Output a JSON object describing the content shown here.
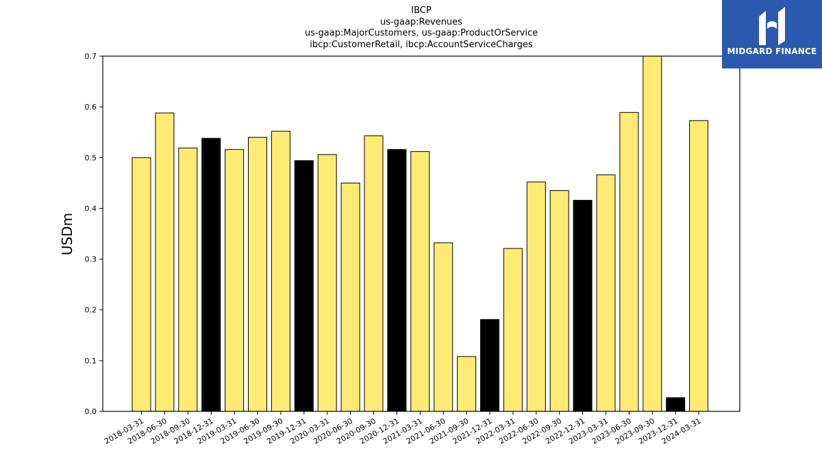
{
  "logo": {
    "text": "MIDGARD FINANCE",
    "background": "#2a59ad"
  },
  "chart_data": {
    "type": "bar",
    "title_lines": [
      "IBCP",
      "us-gaap:Revenues",
      "us-gaap:MajorCustomers, us-gaap:ProductOrService",
      "ibcp:CustomerRetail, ibcp:AccountServiceCharges"
    ],
    "xlabel": "",
    "ylabel": "USDm",
    "ylim": [
      0,
      0.7
    ],
    "yticks": [
      "0.0",
      "0.1",
      "0.2",
      "0.3",
      "0.4",
      "0.5",
      "0.6",
      "0.7"
    ],
    "grid": false,
    "colors": {
      "normal": "#fdeb74",
      "highlight": "#000000",
      "edge": "#000000"
    },
    "categories": [
      "2018-03-31",
      "2018-06-30",
      "2018-09-30",
      "2018-12-31",
      "2019-03-31",
      "2019-06-30",
      "2019-09-30",
      "2019-12-31",
      "2020-03-31",
      "2020-06-30",
      "2020-09-30",
      "2020-12-31",
      "2021-03-31",
      "2021-06-30",
      "2021-09-30",
      "2021-12-31",
      "2022-03-31",
      "2022-06-30",
      "2022-09-30",
      "2022-12-31",
      "2023-03-31",
      "2023-06-30",
      "2023-09-30",
      "2023-12-31",
      "2024-03-31"
    ],
    "values": [
      0.5,
      0.588,
      0.519,
      0.538,
      0.516,
      0.54,
      0.552,
      0.494,
      0.506,
      0.45,
      0.543,
      0.516,
      0.512,
      0.332,
      0.108,
      0.181,
      0.321,
      0.452,
      0.435,
      0.416,
      0.466,
      0.589,
      0.7,
      0.027,
      0.573
    ],
    "highlight": [
      false,
      false,
      false,
      true,
      false,
      false,
      false,
      true,
      false,
      false,
      false,
      true,
      false,
      false,
      false,
      true,
      false,
      false,
      false,
      true,
      false,
      false,
      false,
      true,
      false
    ]
  }
}
